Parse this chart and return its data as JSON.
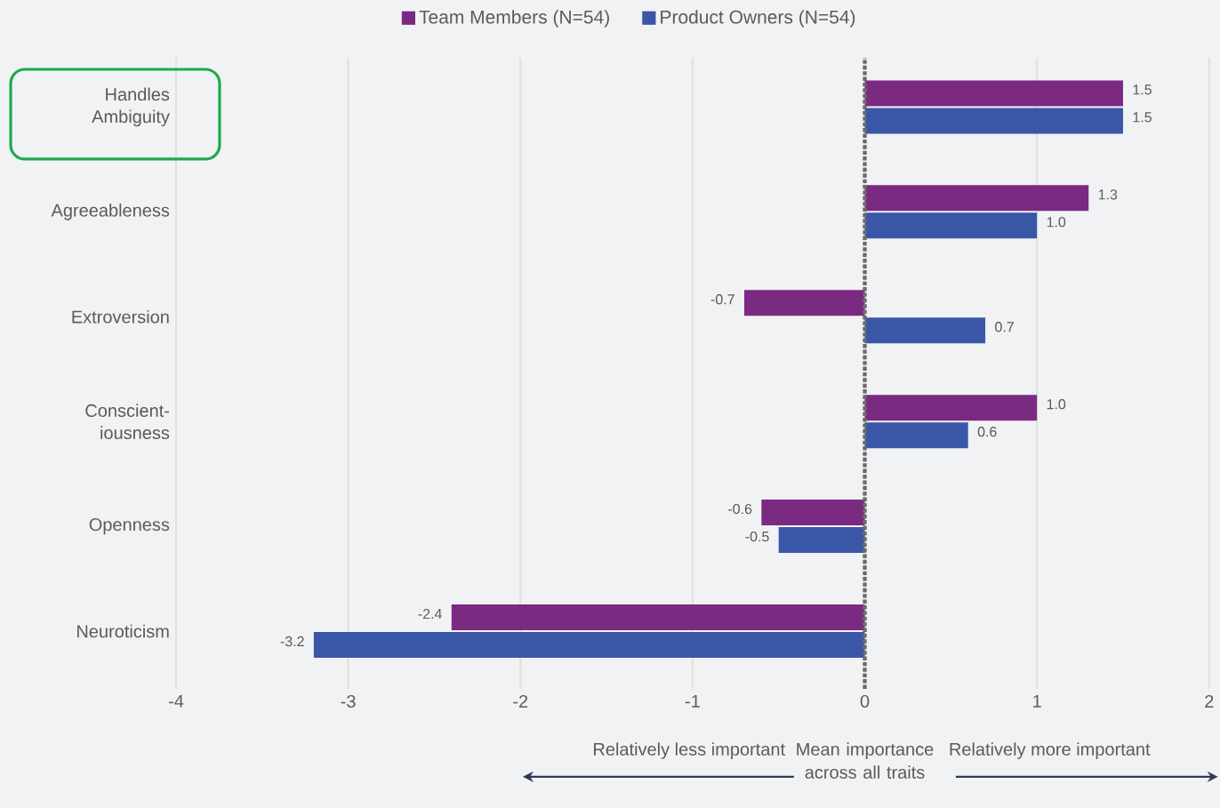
{
  "chart_data": {
    "type": "bar",
    "orientation": "horizontal",
    "categories": [
      "Handles Ambiguity",
      "Agreeableness",
      "Extroversion",
      "Conscient-iousness",
      "Openness",
      "Neuroticism"
    ],
    "series": [
      {
        "name": "Team Members (N=54)",
        "color": "#7b2a82",
        "values": [
          1.5,
          1.3,
          -0.7,
          1.0,
          -0.6,
          -2.4
        ],
        "value_labels": [
          "1.5",
          "1.3",
          "-0.7",
          "1.0",
          "-0.6",
          "-2.4"
        ]
      },
      {
        "name": "Product Owners (N=54)",
        "color": "#3a57a7",
        "values": [
          1.5,
          1.0,
          0.7,
          0.6,
          -0.5,
          -3.2
        ],
        "value_labels": [
          "1.5",
          "1.0",
          "0.7",
          "0.6",
          "-0.5",
          "-3.2"
        ]
      }
    ],
    "xlim": [
      -4,
      2
    ],
    "xticks": [
      -4,
      -3,
      -2,
      -1,
      0,
      1,
      2
    ],
    "grid": "x",
    "legend": "top",
    "ref_lines": [
      {
        "axis": "x",
        "value": 0,
        "line_style": "dotted",
        "color": "#6b6b6b"
      }
    ],
    "annotations": [
      "Relatively less important",
      "Mean importance across all traits",
      "Relatively more important"
    ]
  }
}
